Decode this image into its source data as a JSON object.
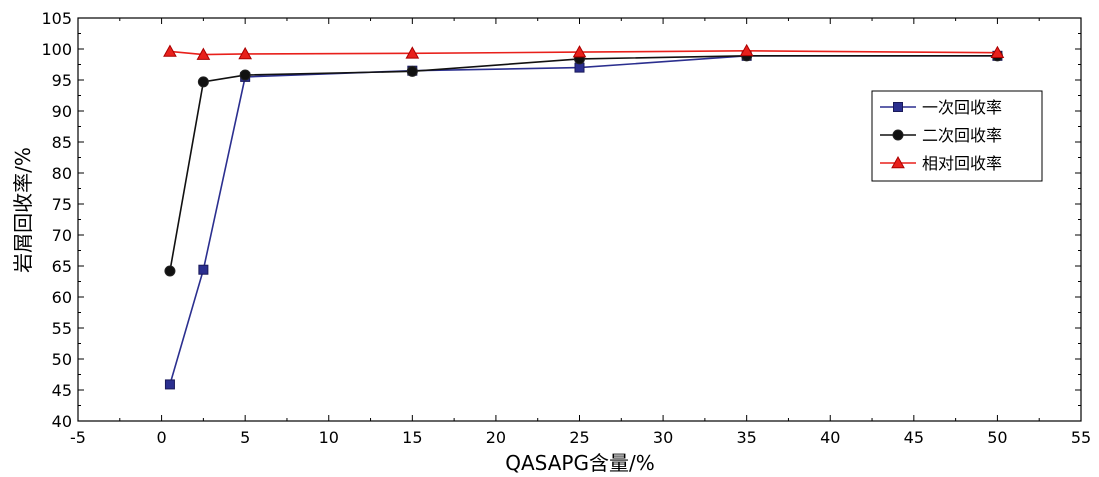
{
  "chart_data": {
    "type": "line",
    "xlabel": "QASAPG含量/%",
    "ylabel": "岩屑回收率/%",
    "xlim": [
      -5,
      55
    ],
    "ylim": [
      40,
      105
    ],
    "xticks": [
      -5,
      0,
      5,
      10,
      15,
      20,
      25,
      30,
      35,
      40,
      45,
      50,
      55
    ],
    "yticks": [
      40,
      45,
      50,
      55,
      60,
      65,
      70,
      75,
      80,
      85,
      90,
      95,
      100,
      105
    ],
    "x": [
      0.5,
      2.5,
      5,
      15,
      25,
      35,
      50
    ],
    "legend_position": "right",
    "grid": false,
    "series": [
      {
        "name": "一次回收率",
        "color": "#2b2f8f",
        "marker": "square",
        "values": [
          45.9,
          64.4,
          95.5,
          96.5,
          97.0,
          98.9,
          98.9
        ]
      },
      {
        "name": "二次回收率",
        "color": "#111111",
        "marker": "circle",
        "values": [
          64.2,
          94.7,
          95.8,
          96.4,
          98.4,
          98.9,
          98.9
        ]
      },
      {
        "name": "相对回收率",
        "color": "#e8201b",
        "marker": "triangle",
        "values": [
          99.6,
          99.1,
          99.2,
          99.3,
          99.5,
          99.7,
          99.4
        ]
      }
    ]
  }
}
